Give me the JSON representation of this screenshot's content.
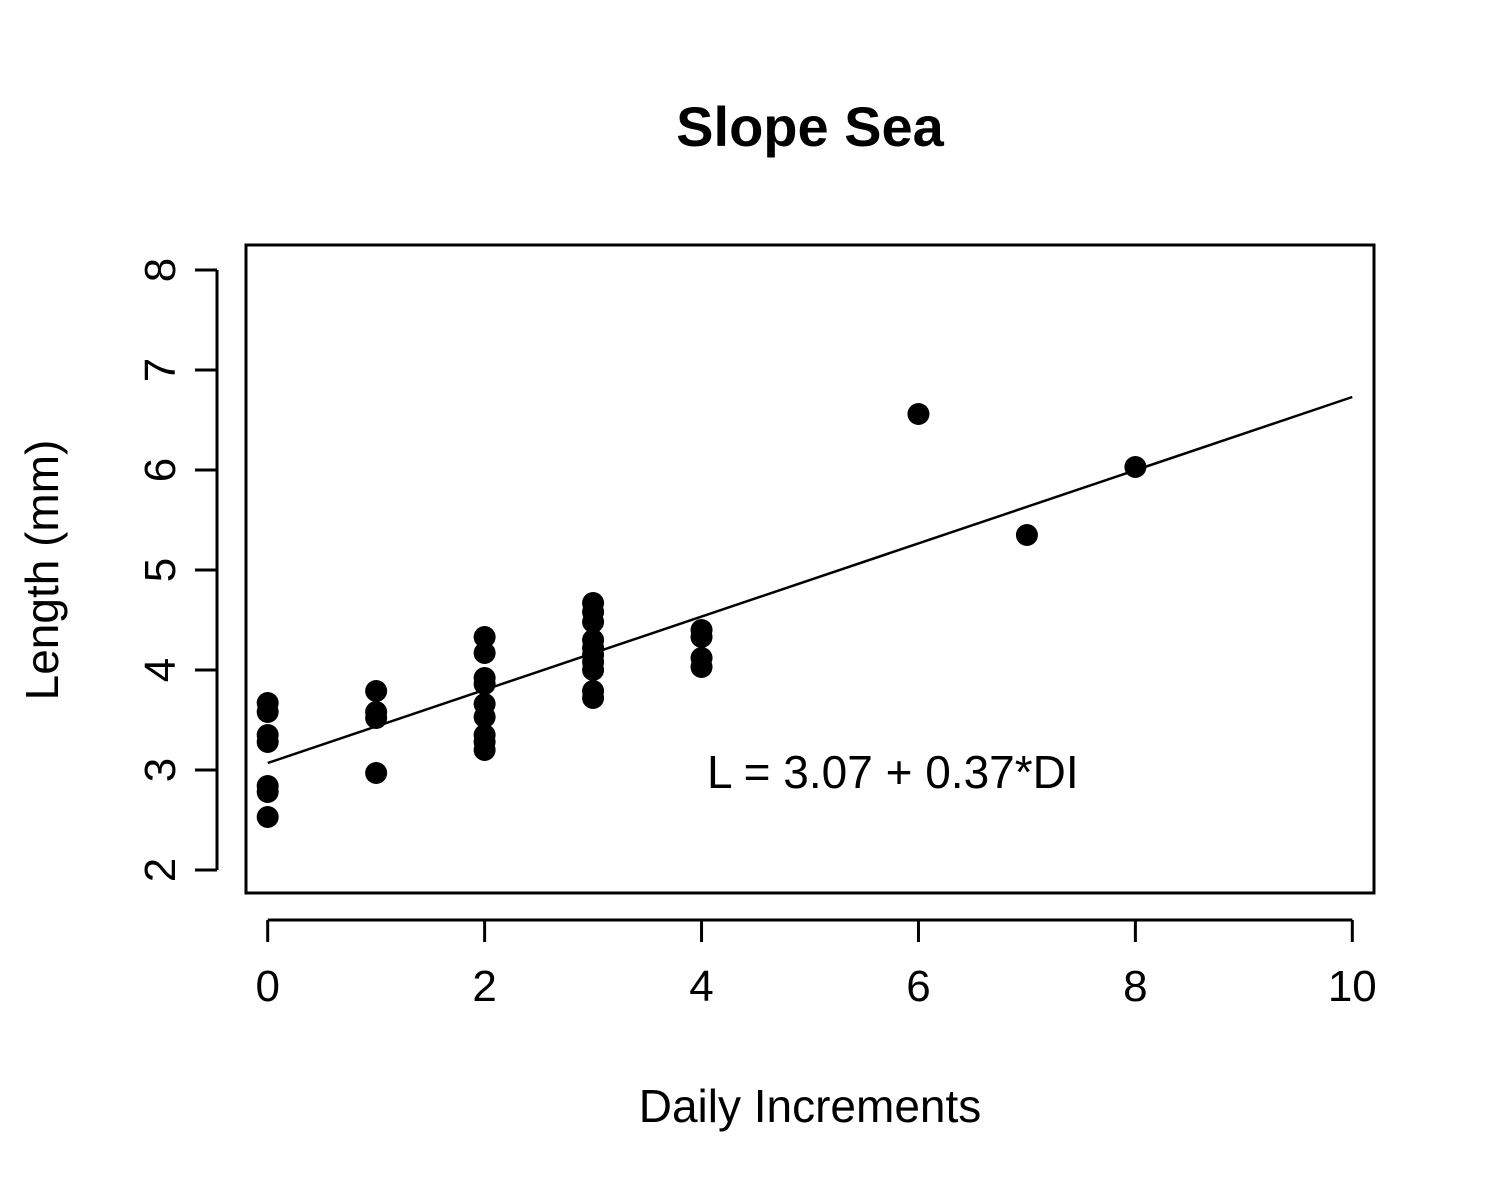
{
  "chart_data": {
    "type": "scatter",
    "title": "Slope Sea",
    "xlabel": "Daily Increments",
    "ylabel": "Length (mm)",
    "xlim": [
      -0.2,
      10.2
    ],
    "ylim": [
      1.77,
      8.25
    ],
    "x_ticks": [
      0,
      2,
      4,
      6,
      8,
      10
    ],
    "y_ticks": [
      2,
      3,
      4,
      5,
      6,
      7,
      8
    ],
    "grid": false,
    "marker_color": "#000000",
    "points": [
      {
        "x": 0,
        "y": 3.67
      },
      {
        "x": 0,
        "y": 3.58
      },
      {
        "x": 0,
        "y": 3.35
      },
      {
        "x": 0,
        "y": 3.28
      },
      {
        "x": 0,
        "y": 2.84
      },
      {
        "x": 0,
        "y": 2.78
      },
      {
        "x": 0,
        "y": 2.53
      },
      {
        "x": 1,
        "y": 3.79
      },
      {
        "x": 1,
        "y": 3.58
      },
      {
        "x": 1,
        "y": 3.52
      },
      {
        "x": 1,
        "y": 2.97
      },
      {
        "x": 2,
        "y": 4.33
      },
      {
        "x": 2,
        "y": 4.17
      },
      {
        "x": 2,
        "y": 3.92
      },
      {
        "x": 2,
        "y": 3.86
      },
      {
        "x": 2,
        "y": 3.66
      },
      {
        "x": 2,
        "y": 3.53
      },
      {
        "x": 2,
        "y": 3.35
      },
      {
        "x": 2,
        "y": 3.28
      },
      {
        "x": 2,
        "y": 3.2
      },
      {
        "x": 3,
        "y": 4.67
      },
      {
        "x": 3,
        "y": 4.58
      },
      {
        "x": 3,
        "y": 4.48
      },
      {
        "x": 3,
        "y": 4.3
      },
      {
        "x": 3,
        "y": 4.22
      },
      {
        "x": 3,
        "y": 4.15
      },
      {
        "x": 3,
        "y": 4.08
      },
      {
        "x": 3,
        "y": 4.0
      },
      {
        "x": 3,
        "y": 3.79
      },
      {
        "x": 3,
        "y": 3.72
      },
      {
        "x": 4,
        "y": 4.4
      },
      {
        "x": 4,
        "y": 4.33
      },
      {
        "x": 4,
        "y": 4.12
      },
      {
        "x": 4,
        "y": 4.03
      },
      {
        "x": 6,
        "y": 6.56
      },
      {
        "x": 7,
        "y": 5.35
      },
      {
        "x": 8,
        "y": 6.03
      }
    ],
    "regression": {
      "intercept": 3.07,
      "slope": 0.366,
      "x_range": [
        0,
        10
      ]
    },
    "annotation": {
      "text": "L = 3.07 + 0.37*DI",
      "x": 4.05,
      "y": 2.98
    }
  }
}
